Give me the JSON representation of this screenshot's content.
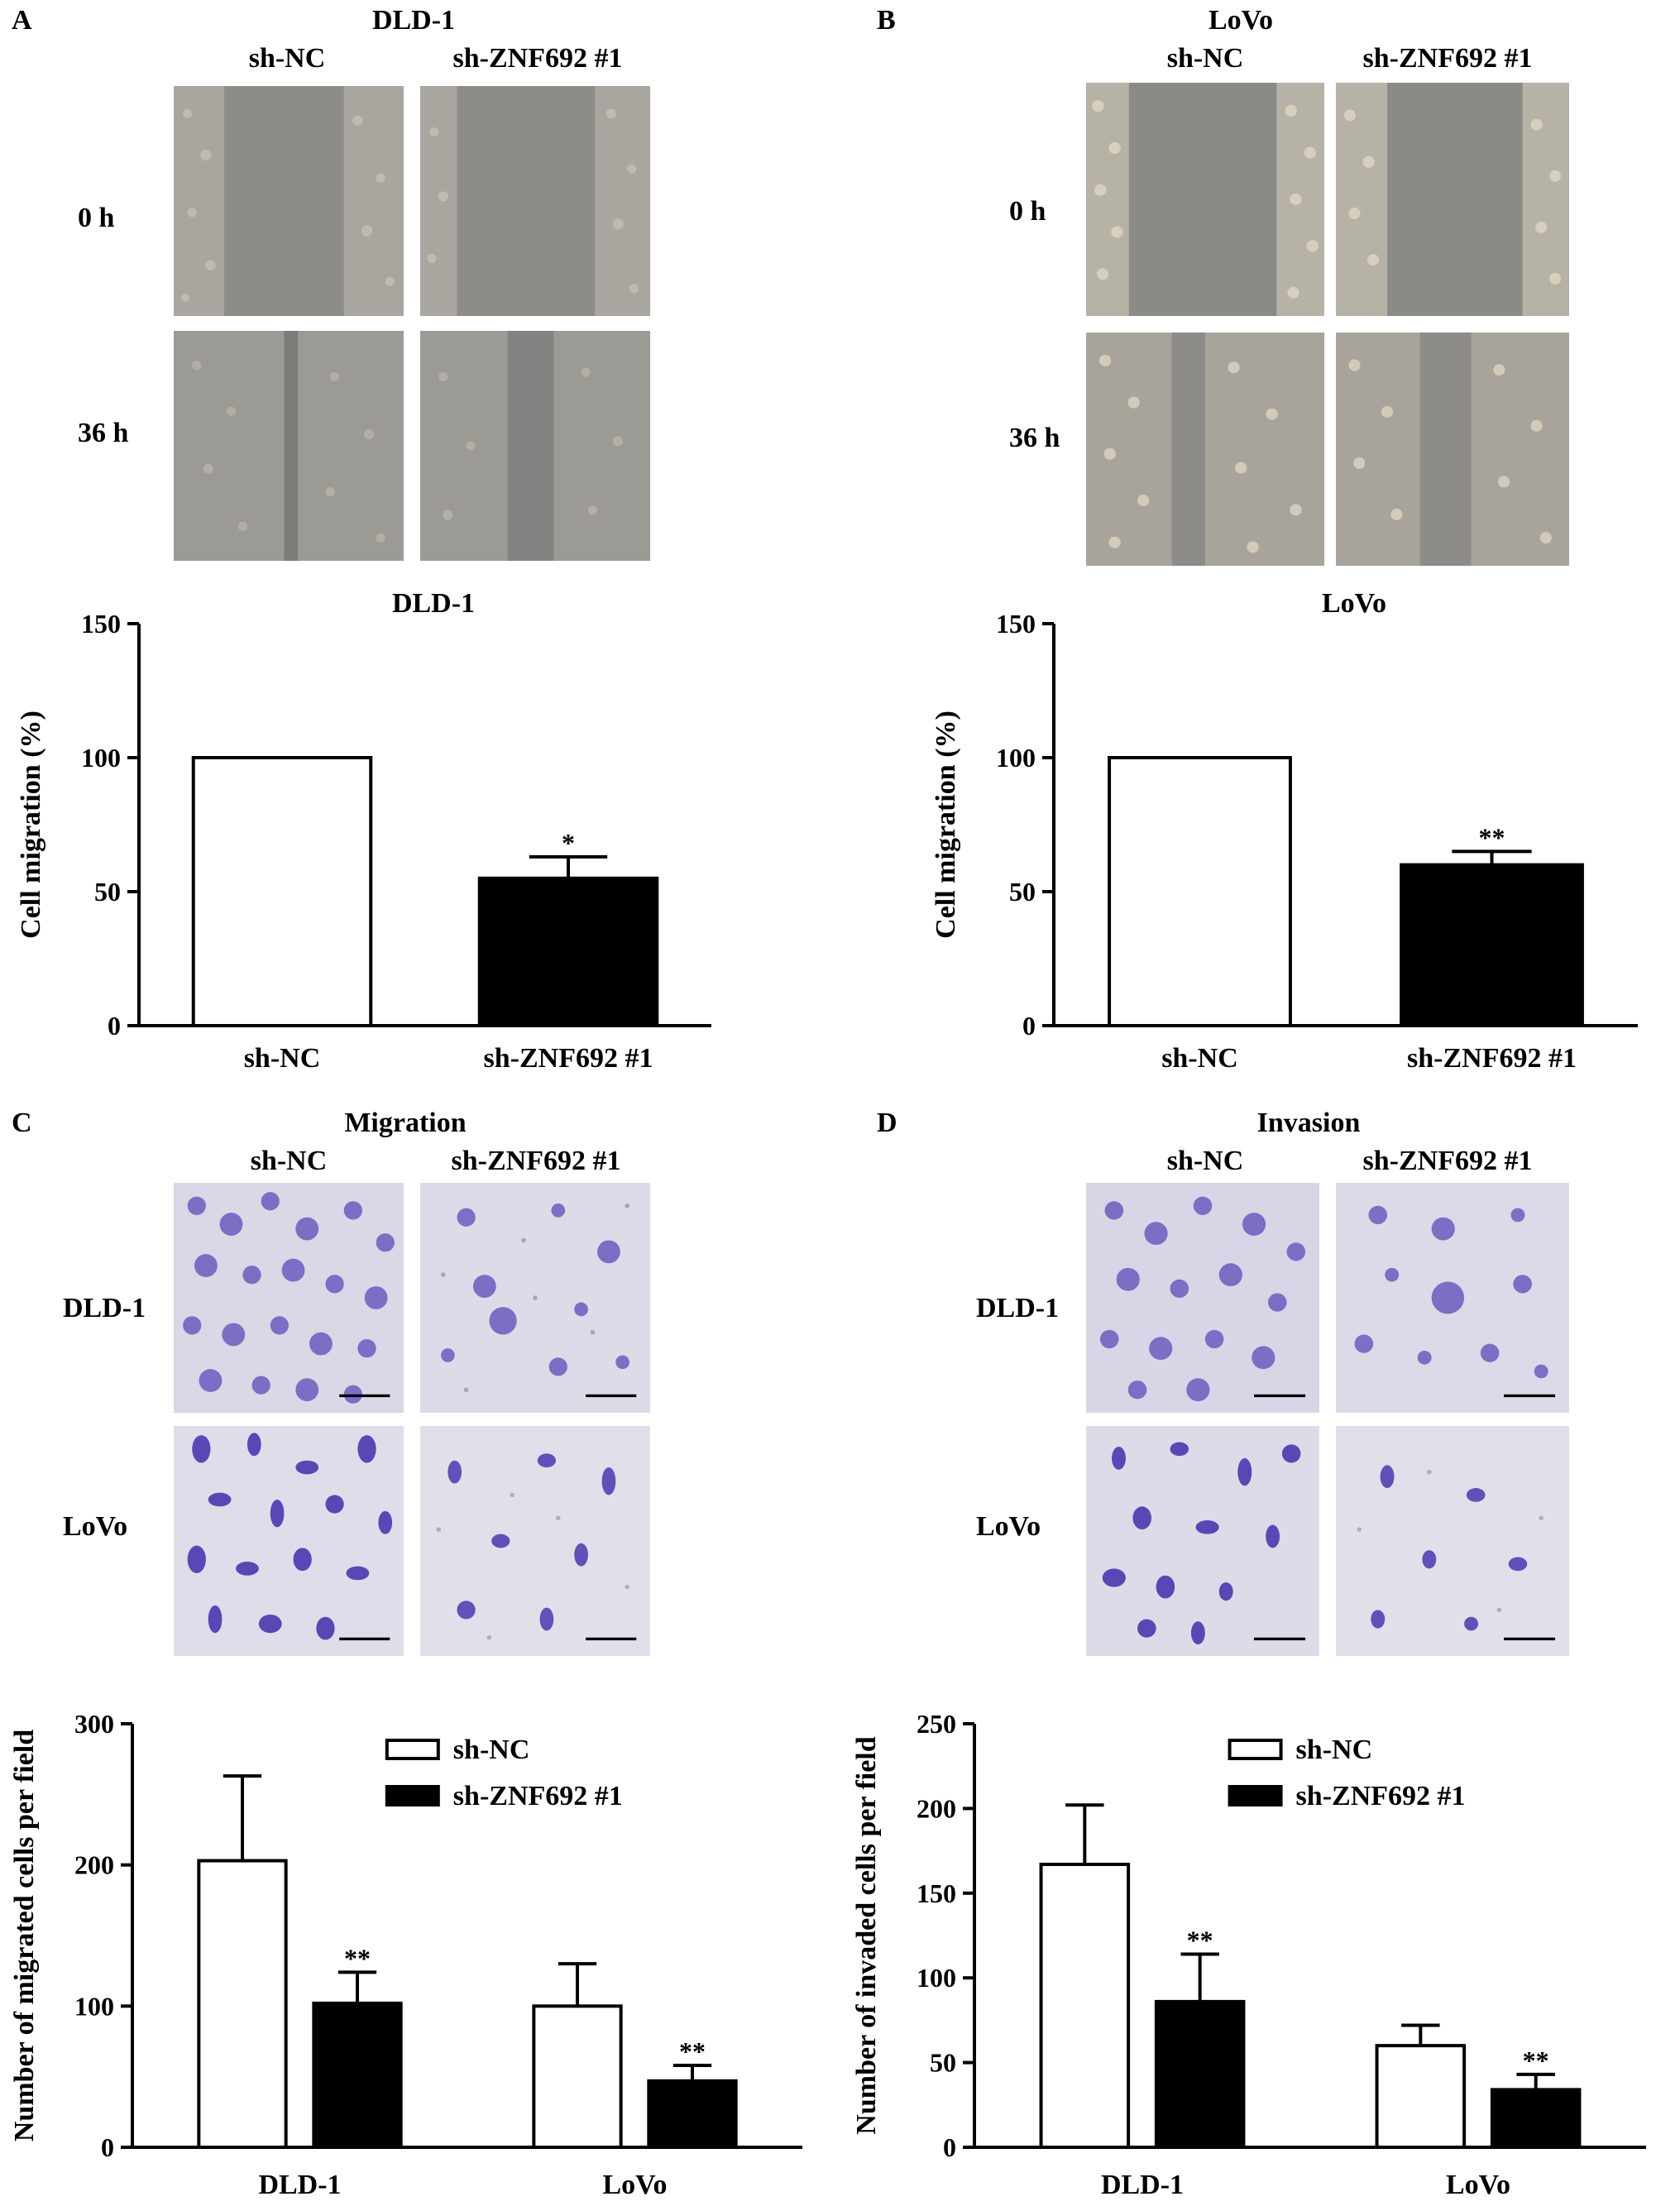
{
  "panels": {
    "A": {
      "letter": "A",
      "cell_line": "DLD-1",
      "col_labels": [
        "sh-NC",
        "sh-ZNF692 #1"
      ],
      "row_labels": [
        "0 h",
        "36 h"
      ]
    },
    "B": {
      "letter": "B",
      "cell_line": "LoVo",
      "col_labels": [
        "sh-NC",
        "sh-ZNF692 #1"
      ],
      "row_labels": [
        "0 h",
        "36 h"
      ]
    },
    "C": {
      "letter": "C",
      "assay": "Migration",
      "col_labels": [
        "sh-NC",
        "sh-ZNF692 #1"
      ],
      "row_labels": [
        "DLD-1",
        "LoVo"
      ]
    },
    "D": {
      "letter": "D",
      "assay": "Invasion",
      "col_labels": [
        "sh-NC",
        "sh-ZNF692 #1"
      ],
      "row_labels": [
        "DLD-1",
        "LoVo"
      ]
    }
  },
  "colors": {
    "woundhealing_bg": "#8a8a88",
    "woundhealing_cells": "#b8b5ac",
    "transwell_bg": "#d9d9e6",
    "transwell_stain": "#5b4cb3",
    "bar_sh_nc": "#ffffff",
    "bar_sh_znf692": "#000000"
  },
  "chart_data": [
    {
      "id": "A",
      "type": "bar",
      "title": "DLD-1",
      "ylabel": "Cell migration (%)",
      "xlabel": "",
      "categories": [
        "sh-NC",
        "sh-ZNF692 #1"
      ],
      "values": [
        100,
        55
      ],
      "errors": [
        0,
        8
      ],
      "significance": [
        "",
        "*"
      ],
      "bar_colors": [
        "#ffffff",
        "#000000"
      ],
      "ylim": [
        0,
        150
      ],
      "yticks": [
        0,
        50,
        100,
        150
      ],
      "grid": false
    },
    {
      "id": "B",
      "type": "bar",
      "title": "LoVo",
      "ylabel": "Cell migration (%)",
      "xlabel": "",
      "categories": [
        "sh-NC",
        "sh-ZNF692 #1"
      ],
      "values": [
        100,
        60
      ],
      "errors": [
        0,
        5
      ],
      "significance": [
        "",
        "**"
      ],
      "bar_colors": [
        "#ffffff",
        "#000000"
      ],
      "ylim": [
        0,
        150
      ],
      "yticks": [
        0,
        50,
        100,
        150
      ],
      "grid": false
    },
    {
      "id": "C",
      "type": "bar",
      "title": "",
      "ylabel": "Number of migrated cells per field",
      "xlabel": "",
      "categories": [
        "DLD-1",
        "LoVo"
      ],
      "series": [
        {
          "name": "sh-NC",
          "values": [
            203,
            100
          ],
          "errors": [
            60,
            30
          ],
          "significance": [
            "",
            ""
          ],
          "color": "#ffffff"
        },
        {
          "name": "sh-ZNF692 #1",
          "values": [
            102,
            47
          ],
          "errors": [
            22,
            11
          ],
          "significance": [
            "**",
            "**"
          ],
          "color": "#000000"
        }
      ],
      "ylim": [
        0,
        300
      ],
      "yticks": [
        0,
        100,
        200,
        300
      ],
      "legend": "top-right",
      "grid": false
    },
    {
      "id": "D",
      "type": "bar",
      "title": "",
      "ylabel": "Number of invaded cells per field",
      "xlabel": "",
      "categories": [
        "DLD-1",
        "LoVo"
      ],
      "series": [
        {
          "name": "sh-NC",
          "values": [
            167,
            60
          ],
          "errors": [
            35,
            12
          ],
          "significance": [
            "",
            ""
          ],
          "color": "#ffffff"
        },
        {
          "name": "sh-ZNF692 #1",
          "values": [
            86,
            34
          ],
          "errors": [
            28,
            9
          ],
          "significance": [
            "**",
            "**"
          ],
          "color": "#000000"
        }
      ],
      "ylim": [
        0,
        250
      ],
      "yticks": [
        0,
        50,
        100,
        150,
        200,
        250
      ],
      "legend": "top-right",
      "grid": false
    }
  ]
}
